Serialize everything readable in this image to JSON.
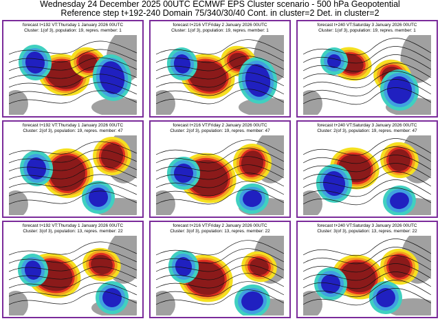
{
  "title_lines": [
    "Wednesday 24 December 2025 00UTC ECMWF EPS Cluster scenario - 500 hPa Geopotential",
    "Reference step t+192-240 Domain 75/340/30/40 Cont. in cluster=2 Det. in cluster=2"
  ],
  "panels": [
    {
      "forecast": "forecast t+192 VT:Thursday 1 January 2026 00UTC",
      "cluster": "Cluster: 1(of 3), population: 19, repres. member: 1",
      "icon": "weather-map-icon"
    },
    {
      "forecast": "forecast t+216 VT:Friday 2 January 2026 00UTC",
      "cluster": "Cluster: 1(of 3), population: 19, repres. member: 1",
      "icon": "weather-map-icon"
    },
    {
      "forecast": "forecast t+240 VT:Saturday 3 January 2026 00UTC",
      "cluster": "Cluster: 1(of 3), population: 19, repres. member: 1",
      "icon": "weather-map-icon"
    },
    {
      "forecast": "forecast t+192 VT:Thursday 1 January 2026 00UTC",
      "cluster": "Cluster: 2(of 3), population: 19, repres. member: 47",
      "icon": "weather-map-icon"
    },
    {
      "forecast": "forecast t+216 VT:Friday 2 January 2026 00UTC",
      "cluster": "Cluster: 2(of 3), population: 19, repres. member: 47",
      "icon": "weather-map-icon"
    },
    {
      "forecast": "forecast t+240 VT:Saturday 3 January 2026 00UTC",
      "cluster": "Cluster: 2(of 3), population: 19, repres. member: 47",
      "icon": "weather-map-icon"
    },
    {
      "forecast": "forecast t+192 VT:Thursday 1 January 2026 00UTC",
      "cluster": "Cluster: 3(of 3), population: 13, repres. member: 22",
      "icon": "weather-map-icon"
    },
    {
      "forecast": "forecast t+216 VT:Friday 2 January 2026 00UTC",
      "cluster": "Cluster: 3(of 3), population: 13, repres. member: 22",
      "icon": "weather-map-icon"
    },
    {
      "forecast": "forecast t+240 VT:Saturday 3 January 2026 00UTC",
      "cluster": "Cluster: 3(of 3), population: 13, repres. member: 22",
      "icon": "weather-map-icon"
    }
  ],
  "colors": {
    "frame": "#7a2a9a",
    "anomaly_positive_dark": "#8b1a1a",
    "anomaly_positive": "#e03020",
    "anomaly_positive_light": "#f5a020",
    "anomaly_weak_positive": "#f5e020",
    "anomaly_negative_light": "#40d0c0",
    "anomaly_negative": "#40a0e0",
    "anomaly_negative_dark": "#2020c0",
    "land": "#a0a0a0"
  }
}
